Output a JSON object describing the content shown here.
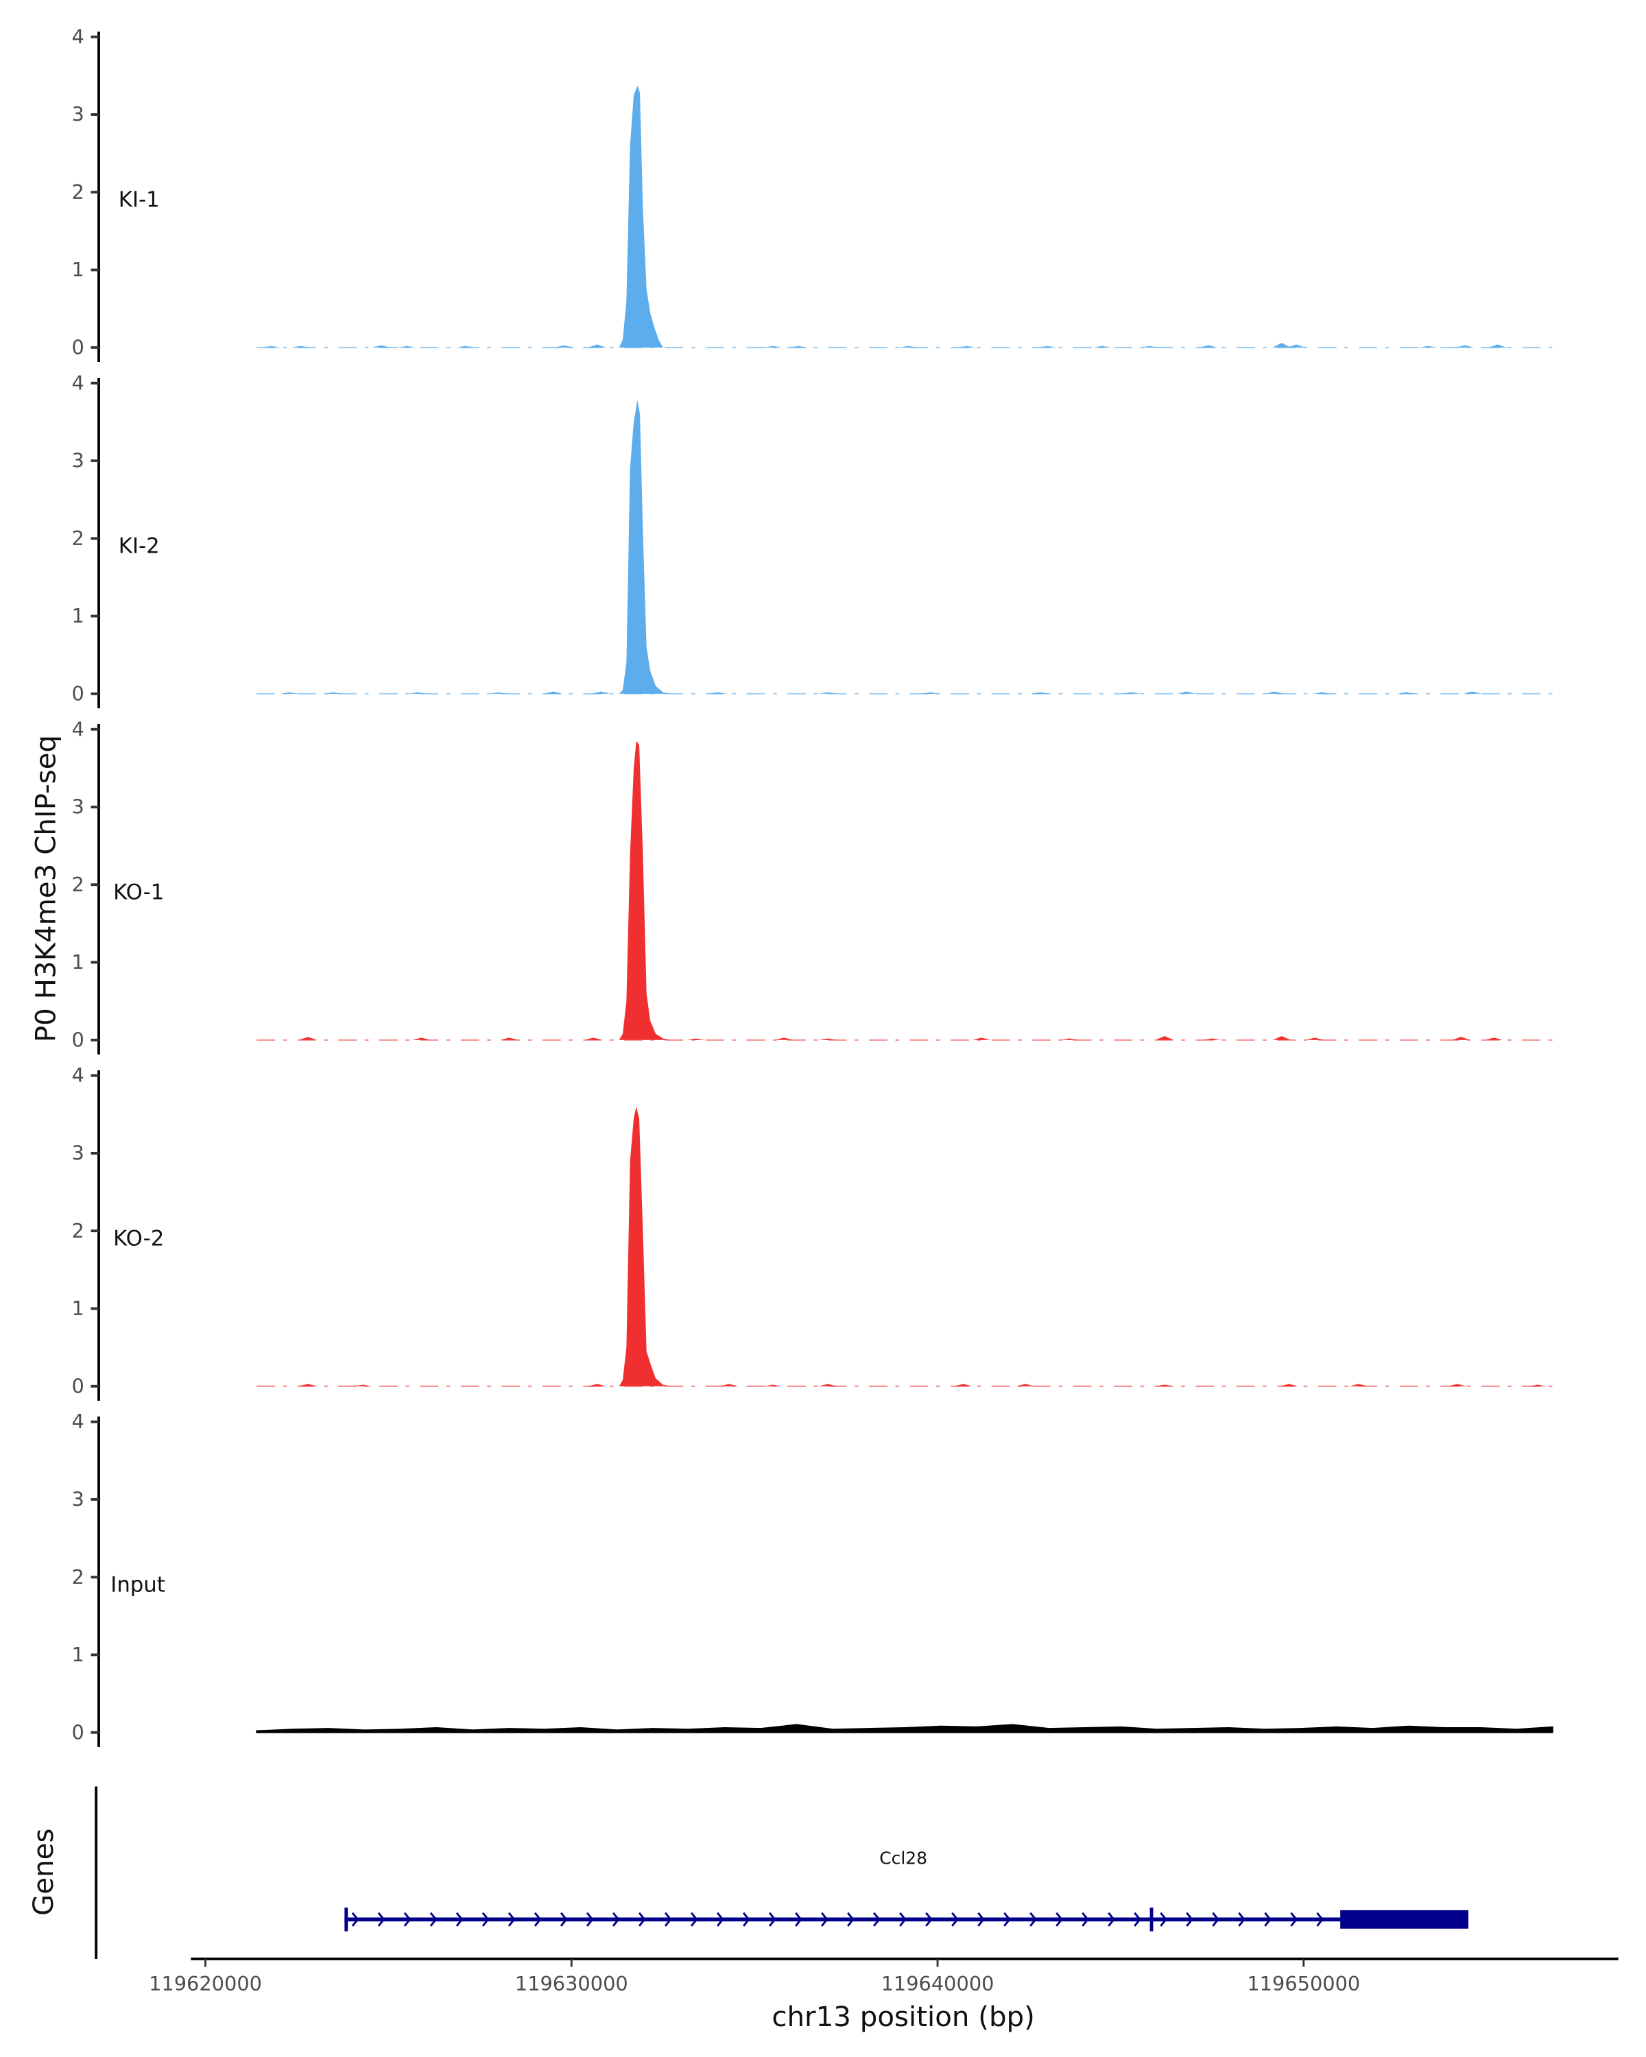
{
  "chart_data": {
    "type": "area",
    "ylabel": "P0 H3K4me3 ChIP-seq",
    "xlabel": "chr13 position (bp)",
    "xlim": [
      119619700,
      119658900
    ],
    "ylim": [
      0,
      4
    ],
    "y_ticks": [
      "0",
      "1",
      "2",
      "3",
      "4"
    ],
    "x_ticks": [
      119620000,
      119630000,
      119640000,
      119650000
    ],
    "x_tick_labels": [
      "119620000",
      "119630000",
      "119640000",
      "119650000"
    ],
    "data_range": [
      119621400,
      119656800
    ],
    "tracks": [
      {
        "name": "KI-1",
        "color": "#5DADEC",
        "peak": [
          [
            119631300,
            0
          ],
          [
            119631400,
            0.1
          ],
          [
            119631500,
            0.6
          ],
          [
            119631600,
            2.6
          ],
          [
            119631700,
            3.25
          ],
          [
            119631800,
            3.37
          ],
          [
            119631870,
            3.28
          ],
          [
            119631950,
            1.8
          ],
          [
            119632050,
            0.75
          ],
          [
            119632150,
            0.45
          ],
          [
            119632250,
            0.28
          ],
          [
            119632380,
            0.1
          ],
          [
            119632500,
            0
          ]
        ],
        "bumps": [
          [
            119621800,
            0.02
          ],
          [
            119622600,
            0.02
          ],
          [
            119624800,
            0.03
          ],
          [
            119625500,
            0.02
          ],
          [
            119627100,
            0.02
          ],
          [
            119629800,
            0.03
          ],
          [
            119630700,
            0.04
          ],
          [
            119635500,
            0.02
          ],
          [
            119636200,
            0.02
          ],
          [
            119639200,
            0.02
          ],
          [
            119640800,
            0.02
          ],
          [
            119643000,
            0.02
          ],
          [
            119644500,
            0.02
          ],
          [
            119645800,
            0.02
          ],
          [
            119647400,
            0.03
          ],
          [
            119649400,
            0.06
          ],
          [
            119649800,
            0.04
          ],
          [
            119653400,
            0.02
          ],
          [
            119654400,
            0.03
          ],
          [
            119655300,
            0.04
          ]
        ]
      },
      {
        "name": "KI-2",
        "color": "#5DADEC",
        "peak": [
          [
            119631300,
            0
          ],
          [
            119631400,
            0.05
          ],
          [
            119631500,
            0.4
          ],
          [
            119631600,
            2.9
          ],
          [
            119631700,
            3.5
          ],
          [
            119631800,
            3.78
          ],
          [
            119631870,
            3.6
          ],
          [
            119631950,
            2.1
          ],
          [
            119632050,
            0.6
          ],
          [
            119632150,
            0.3
          ],
          [
            119632300,
            0.1
          ],
          [
            119632500,
            0.02
          ],
          [
            119632700,
            0
          ]
        ],
        "bumps": [
          [
            119622300,
            0.02
          ],
          [
            119623500,
            0.02
          ],
          [
            119625800,
            0.02
          ],
          [
            119628000,
            0.02
          ],
          [
            119629500,
            0.03
          ],
          [
            119630800,
            0.03
          ],
          [
            119634000,
            0.02
          ],
          [
            119637000,
            0.02
          ],
          [
            119639800,
            0.02
          ],
          [
            119642800,
            0.02
          ],
          [
            119645300,
            0.02
          ],
          [
            119646800,
            0.03
          ],
          [
            119649200,
            0.03
          ],
          [
            119650500,
            0.02
          ],
          [
            119652800,
            0.02
          ],
          [
            119654600,
            0.03
          ]
        ]
      },
      {
        "name": "KO-1",
        "color": "#F03030",
        "peak": [
          [
            119631300,
            0
          ],
          [
            119631400,
            0.08
          ],
          [
            119631500,
            0.5
          ],
          [
            119631600,
            2.4
          ],
          [
            119631700,
            3.5
          ],
          [
            119631770,
            3.85
          ],
          [
            119631850,
            3.8
          ],
          [
            119631950,
            2.4
          ],
          [
            119632050,
            0.6
          ],
          [
            119632150,
            0.25
          ],
          [
            119632300,
            0.08
          ],
          [
            119632500,
            0.02
          ],
          [
            119632700,
            0
          ]
        ],
        "bumps": [
          [
            119622800,
            0.04
          ],
          [
            119625900,
            0.03
          ],
          [
            119628300,
            0.03
          ],
          [
            119630600,
            0.03
          ],
          [
            119633400,
            0.02
          ],
          [
            119635800,
            0.03
          ],
          [
            119637000,
            0.02
          ],
          [
            119641200,
            0.03
          ],
          [
            119643600,
            0.02
          ],
          [
            119646200,
            0.05
          ],
          [
            119647500,
            0.02
          ],
          [
            119649400,
            0.05
          ],
          [
            119650300,
            0.03
          ],
          [
            119654300,
            0.04
          ],
          [
            119655200,
            0.03
          ]
        ]
      },
      {
        "name": "KO-2",
        "color": "#F03030",
        "peak": [
          [
            119631300,
            0
          ],
          [
            119631400,
            0.08
          ],
          [
            119631500,
            0.5
          ],
          [
            119631600,
            2.9
          ],
          [
            119631700,
            3.45
          ],
          [
            119631770,
            3.6
          ],
          [
            119631850,
            3.45
          ],
          [
            119631950,
            2.0
          ],
          [
            119632050,
            0.45
          ],
          [
            119632150,
            0.3
          ],
          [
            119632300,
            0.1
          ],
          [
            119632500,
            0.02
          ],
          [
            119632700,
            0
          ]
        ],
        "bumps": [
          [
            119622800,
            0.03
          ],
          [
            119624300,
            0.02
          ],
          [
            119630700,
            0.03
          ],
          [
            119634300,
            0.03
          ],
          [
            119635500,
            0.02
          ],
          [
            119637000,
            0.03
          ],
          [
            119640700,
            0.03
          ],
          [
            119642400,
            0.03
          ],
          [
            119646200,
            0.02
          ],
          [
            119649600,
            0.03
          ],
          [
            119651500,
            0.03
          ],
          [
            119654200,
            0.03
          ],
          [
            119656400,
            0.02
          ]
        ]
      },
      {
        "name": "Input",
        "color": "#000000",
        "baseline": [
          0.02,
          0.04,
          0.05,
          0.03,
          0.04,
          0.06,
          0.03,
          0.05,
          0.04,
          0.06,
          0.03,
          0.05,
          0.04,
          0.06,
          0.05,
          0.1,
          0.04,
          0.05,
          0.06,
          0.08,
          0.07,
          0.1,
          0.05,
          0.06,
          0.07,
          0.04,
          0.05,
          0.06,
          0.04,
          0.05,
          0.07,
          0.05,
          0.08,
          0.06,
          0.06,
          0.04,
          0.07
        ]
      }
    ],
    "genes": {
      "label": "Genes",
      "items": [
        {
          "name": "Ccl28",
          "start": 119623800,
          "end": 119654500,
          "strand": "+",
          "exons": [
            [
              119623800,
              119623850
            ],
            [
              119645800,
              119645860
            ],
            [
              119651000,
              119654500
            ]
          ]
        }
      ]
    }
  }
}
